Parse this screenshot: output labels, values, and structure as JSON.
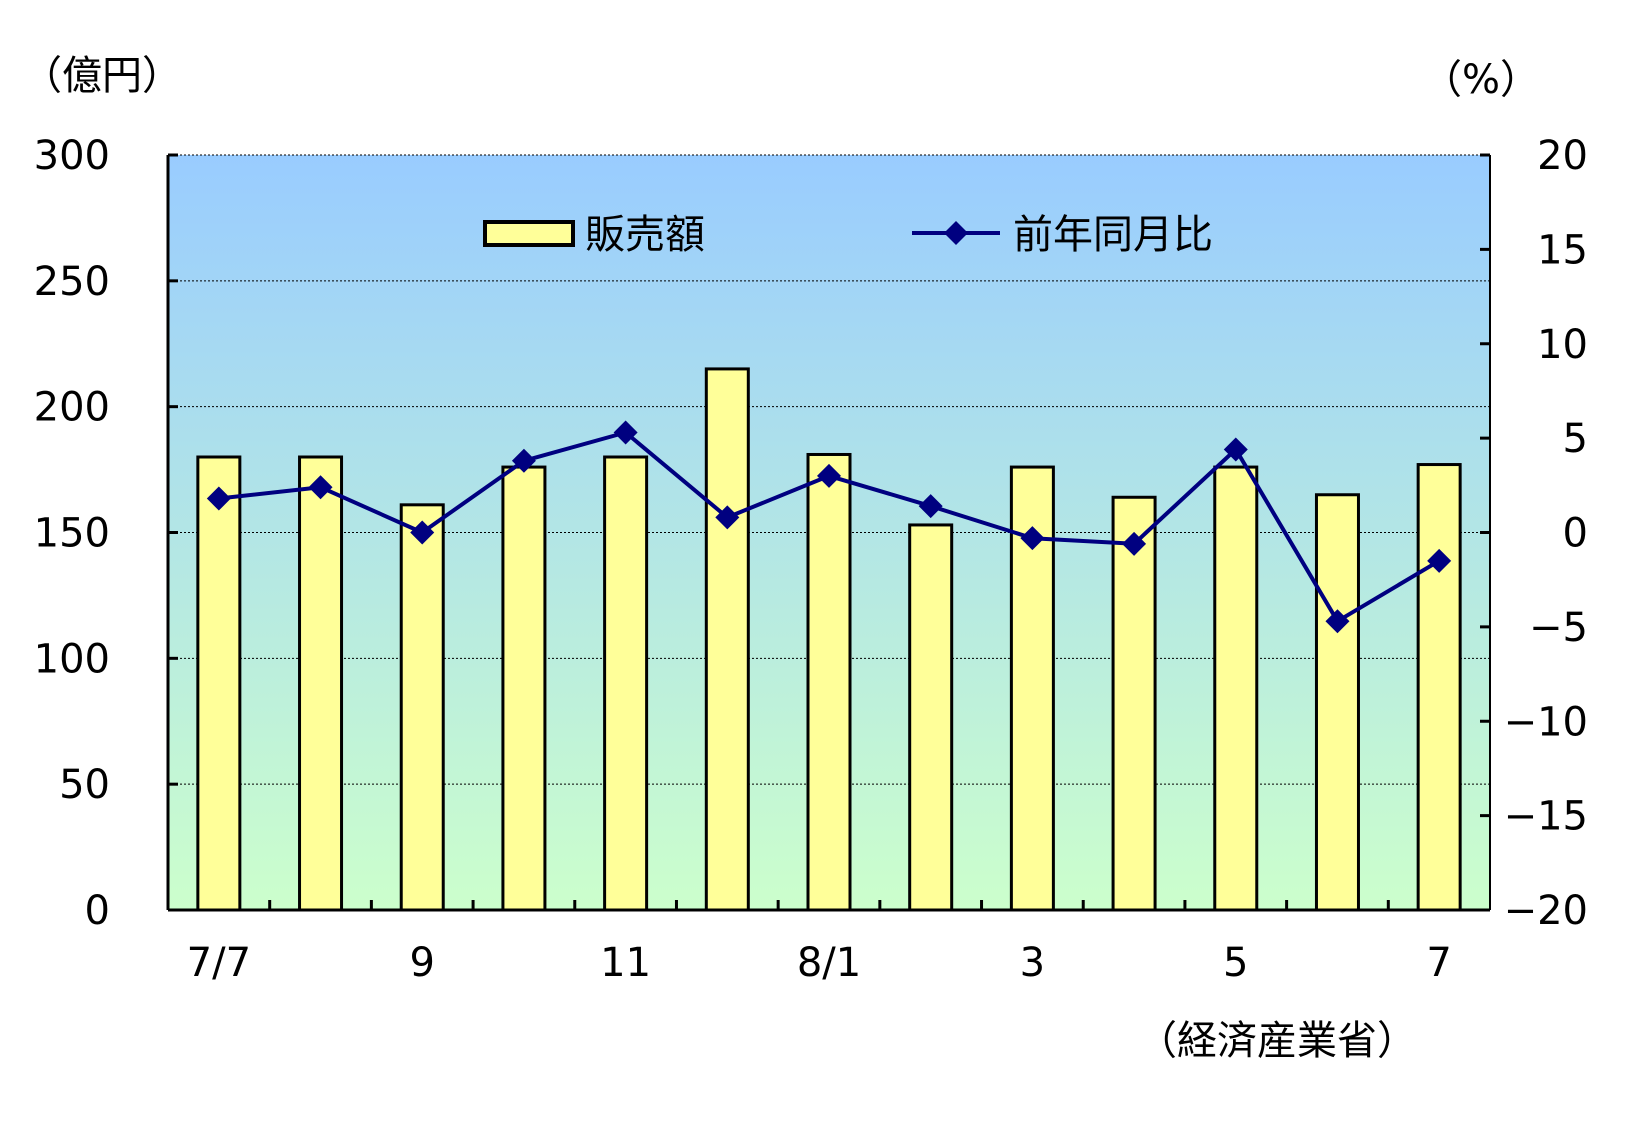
{
  "chart_data": {
    "type": "bar",
    "categories": [
      "7/7",
      "",
      "9",
      "",
      "11",
      "",
      "8/1",
      "",
      "3",
      "",
      "5",
      "",
      "7"
    ],
    "series": [
      {
        "name": "販売額",
        "type": "bar",
        "axis": "left",
        "values": [
          180,
          180,
          161,
          176,
          180,
          215,
          181,
          153,
          176,
          164,
          176,
          165,
          177
        ]
      },
      {
        "name": "前年同月比",
        "type": "line",
        "axis": "right",
        "values": [
          1.8,
          2.4,
          0.0,
          3.8,
          5.3,
          0.8,
          3.0,
          1.4,
          -0.3,
          -0.6,
          4.4,
          -4.7,
          -1.5
        ]
      }
    ],
    "y_left": {
      "unit": "（億円）",
      "ylim": [
        0,
        300
      ],
      "ticks": [
        0,
        50,
        100,
        150,
        200,
        250,
        300
      ]
    },
    "y_right": {
      "unit": "（%）",
      "ylim": [
        -20,
        20
      ],
      "ticks": [
        -20,
        -15,
        -10,
        -5,
        0,
        5,
        10,
        15,
        20
      ]
    },
    "grid": true,
    "legend_position": "top-center",
    "source": "（経済産業省）",
    "colors": {
      "bar_fill": "#ffff99",
      "bar_stroke": "#000000",
      "line": "#000080",
      "bg_top": "#99ccff",
      "bg_bottom": "#ccffcc"
    }
  }
}
